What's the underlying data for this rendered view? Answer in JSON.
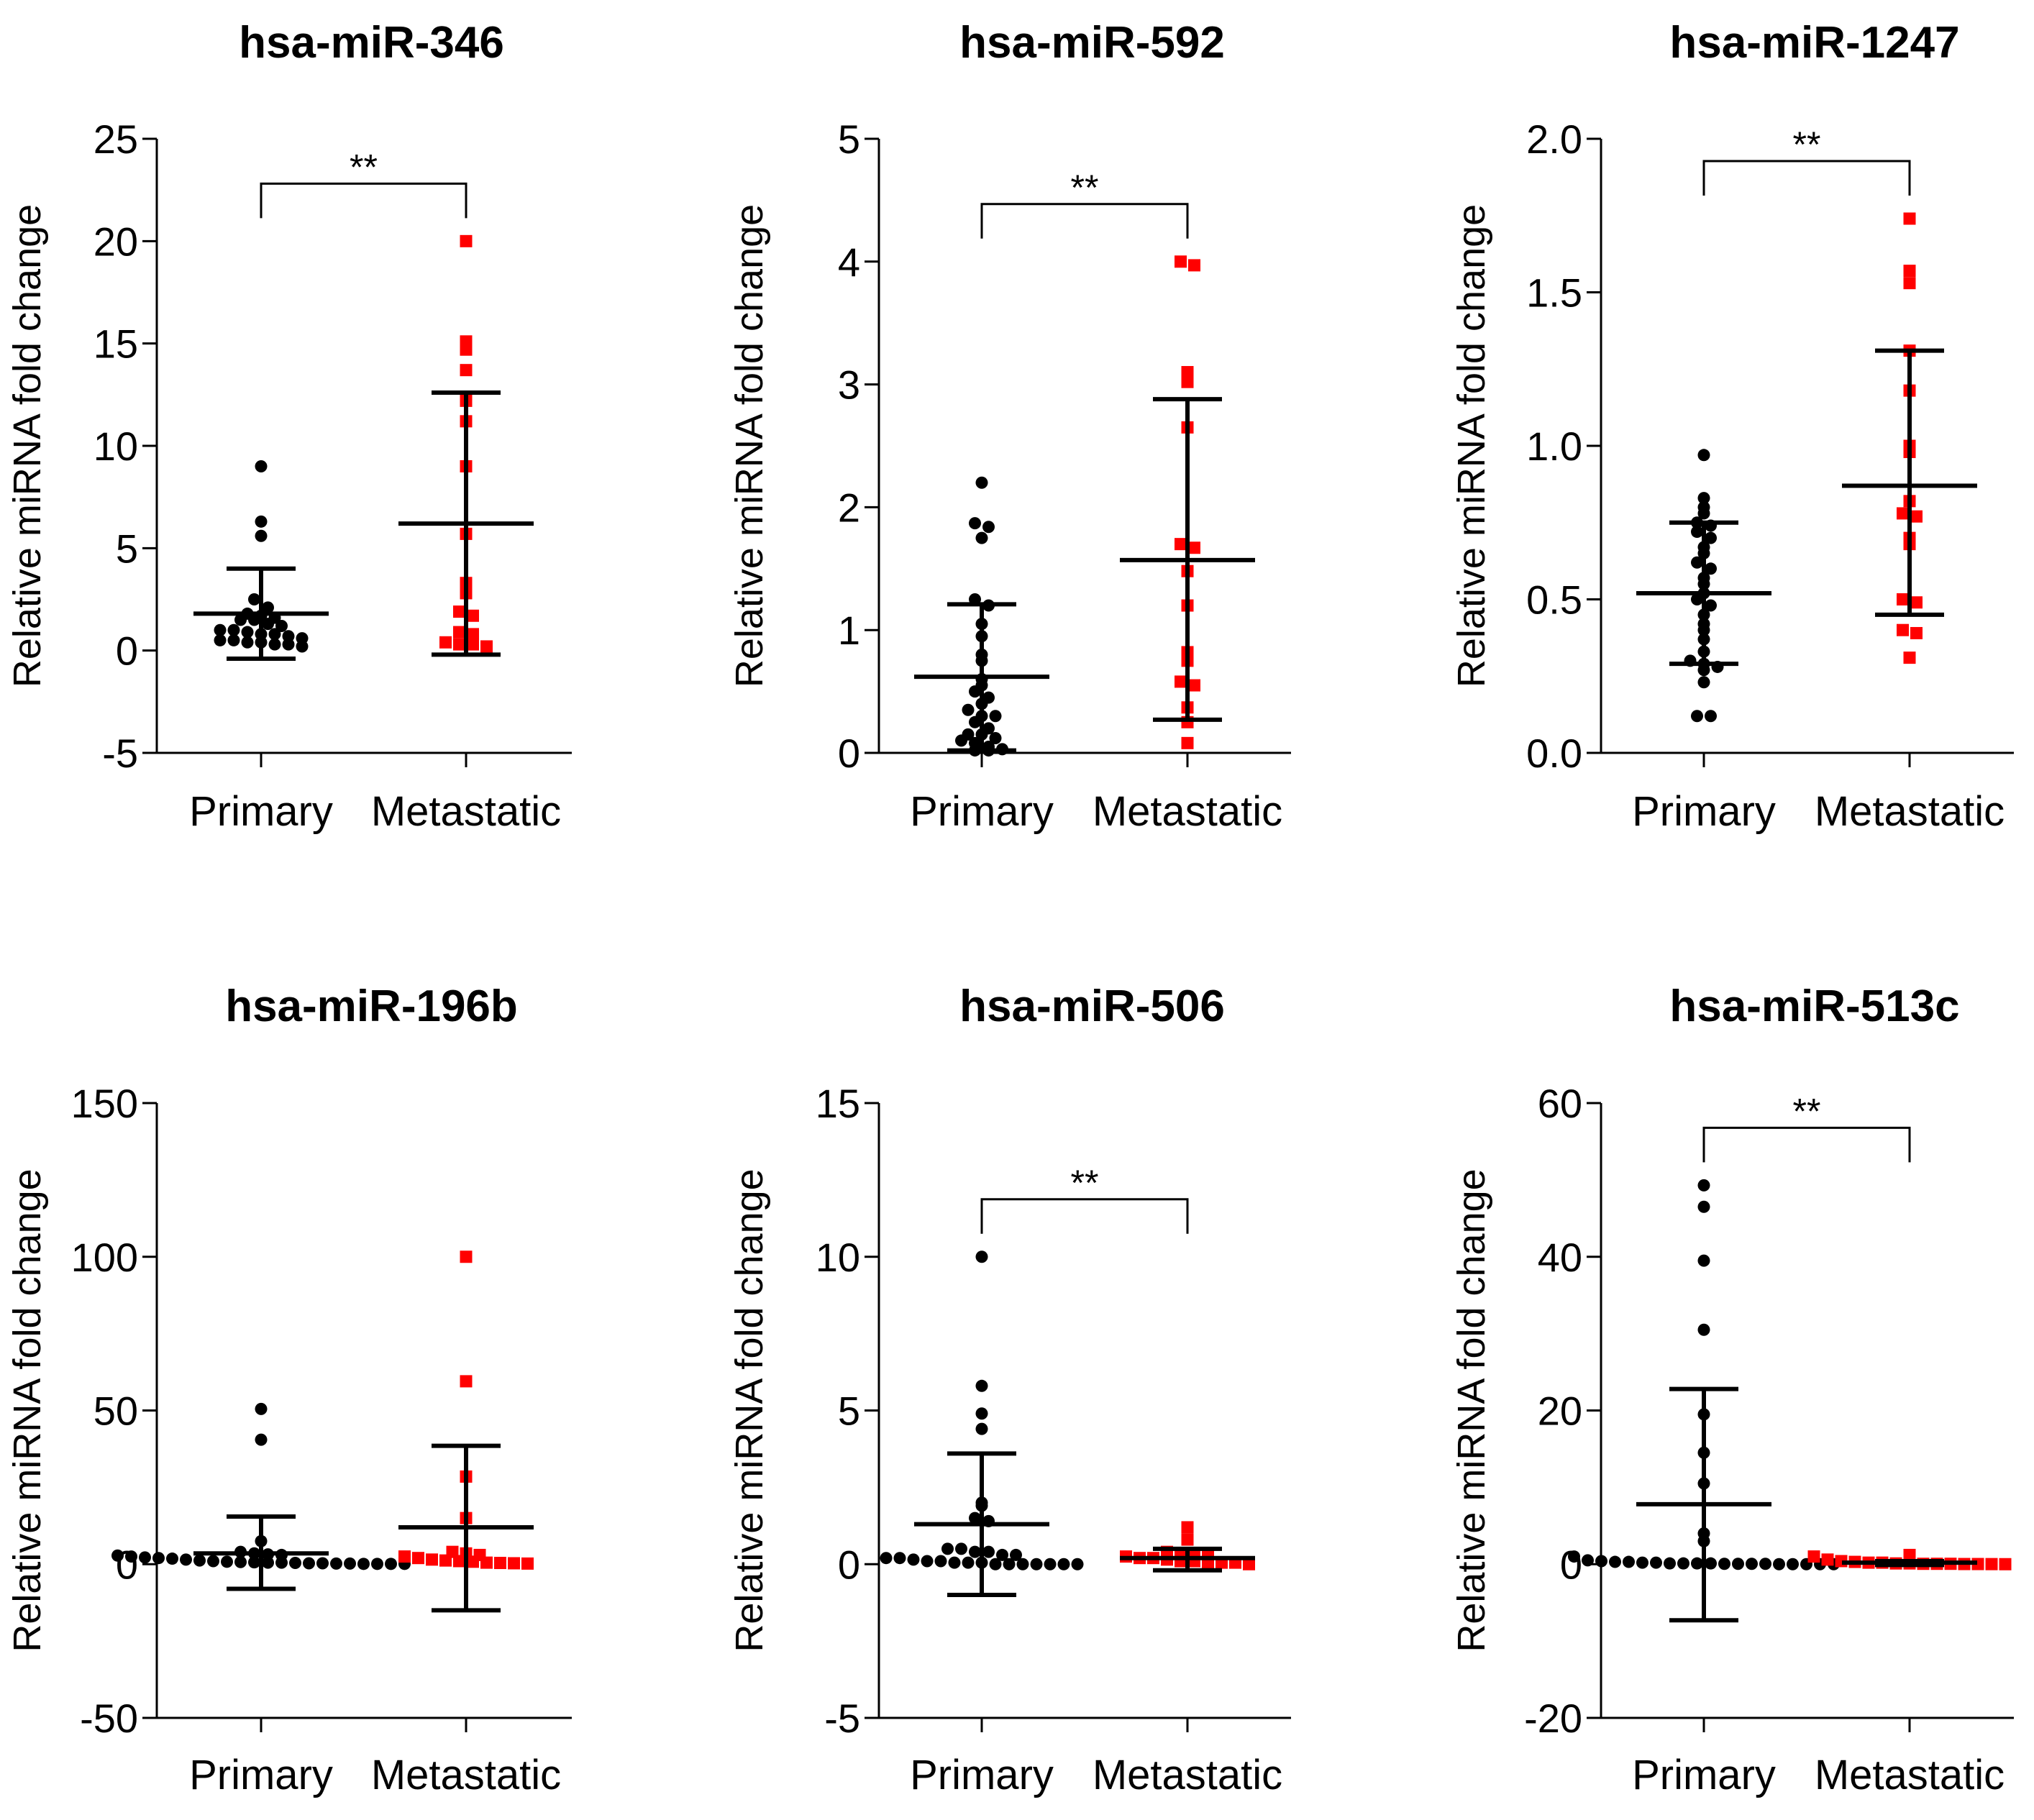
{
  "chart_data": [
    {
      "type": "scatter",
      "title": "hsa-miR-346",
      "ylabel": "Relative miRNA fold change",
      "ylim": [
        -5,
        25
      ],
      "yticks": [
        -5,
        0,
        5,
        10,
        15,
        20,
        25
      ],
      "categories": [
        "Primary",
        "Metastatic"
      ],
      "significance": "**",
      "series": [
        {
          "category": "Primary",
          "color": "#000000",
          "marker": "circle",
          "mean": 1.8,
          "sd_low": -0.4,
          "sd_high": 4.0,
          "values": [
            9.0,
            6.3,
            5.6,
            2.5,
            2.1,
            1.8,
            1.7,
            1.6,
            1.5,
            1.5,
            1.3,
            1.2,
            1.0,
            1.0,
            0.9,
            0.8,
            0.8,
            0.7,
            0.6,
            0.5,
            0.5,
            0.4,
            0.4,
            0.3,
            0.3,
            0.2
          ]
        },
        {
          "category": "Metastatic",
          "color": "#ff0000",
          "marker": "square",
          "mean": 6.2,
          "sd_low": -0.2,
          "sd_high": 12.6,
          "values": [
            20.0,
            15.1,
            14.7,
            13.7,
            12.2,
            11.2,
            9.0,
            5.7,
            3.3,
            2.8,
            1.9,
            1.7,
            0.9,
            0.8,
            0.4,
            0.3,
            0.3,
            0.2
          ]
        }
      ]
    },
    {
      "type": "scatter",
      "title": "hsa-miR-592",
      "ylabel": "Relative miRNA fold change",
      "ylim": [
        0,
        5
      ],
      "yticks": [
        0,
        1,
        2,
        3,
        4,
        5
      ],
      "categories": [
        "Primary",
        "Metastatic"
      ],
      "significance": "**",
      "series": [
        {
          "category": "Primary",
          "color": "#000000",
          "marker": "circle",
          "mean": 0.62,
          "sd_low": 0.02,
          "sd_high": 1.21,
          "values": [
            2.2,
            1.87,
            1.84,
            1.75,
            1.25,
            1.2,
            1.05,
            0.95,
            0.8,
            0.75,
            0.6,
            0.55,
            0.5,
            0.45,
            0.4,
            0.35,
            0.3,
            0.3,
            0.25,
            0.2,
            0.15,
            0.15,
            0.12,
            0.1,
            0.08,
            0.05,
            0.03,
            0.02,
            0.02
          ]
        },
        {
          "category": "Metastatic",
          "color": "#ff0000",
          "marker": "square",
          "mean": 1.57,
          "sd_low": 0.27,
          "sd_high": 2.88,
          "values": [
            4.0,
            3.97,
            3.1,
            3.02,
            2.65,
            1.7,
            1.67,
            1.48,
            1.2,
            0.82,
            0.75,
            0.58,
            0.55,
            0.37,
            0.25,
            0.08
          ]
        }
      ]
    },
    {
      "type": "scatter",
      "title": "hsa-miR-1247",
      "ylabel": "Relative miRNA fold change",
      "ylim": [
        0.0,
        2.0
      ],
      "yticks": [
        0.0,
        0.5,
        1.0,
        1.5,
        2.0
      ],
      "tick_format": "1",
      "categories": [
        "Primary",
        "Metastatic"
      ],
      "significance": "**",
      "series": [
        {
          "category": "Primary",
          "color": "#000000",
          "marker": "circle",
          "mean": 0.52,
          "sd_low": 0.29,
          "sd_high": 0.75,
          "values": [
            0.97,
            0.83,
            0.8,
            0.78,
            0.75,
            0.74,
            0.72,
            0.7,
            0.67,
            0.65,
            0.62,
            0.6,
            0.57,
            0.55,
            0.52,
            0.5,
            0.48,
            0.45,
            0.42,
            0.4,
            0.37,
            0.33,
            0.3,
            0.29,
            0.28,
            0.27,
            0.23,
            0.12,
            0.12
          ]
        },
        {
          "category": "Metastatic",
          "color": "#ff0000",
          "marker": "square",
          "mean": 0.87,
          "sd_low": 0.45,
          "sd_high": 1.31,
          "values": [
            1.74,
            1.57,
            1.53,
            1.31,
            1.18,
            1.0,
            0.98,
            0.82,
            0.78,
            0.77,
            0.7,
            0.68,
            0.5,
            0.49,
            0.4,
            0.39,
            0.31
          ]
        }
      ]
    },
    {
      "type": "scatter",
      "title": "hsa-miR-196b",
      "ylabel": "Relative miRNA fold change",
      "ylim": [
        -50,
        150
      ],
      "yticks": [
        -50,
        0,
        50,
        100,
        150
      ],
      "categories": [
        "Primary",
        "Metastatic"
      ],
      "significance": "",
      "series": [
        {
          "category": "Primary",
          "color": "#000000",
          "marker": "circle",
          "mean": 3.5,
          "sd_low": -8,
          "sd_high": 15.5,
          "values": [
            50.5,
            40.5,
            7.5,
            4,
            3.5,
            3.2,
            3,
            2.8,
            2.5,
            2.2,
            2,
            1.8,
            1.5,
            1.2,
            1,
            0.8,
            0.7,
            0.6,
            0.5,
            0.5,
            0.4,
            0.3,
            0.3,
            0.2,
            0.2,
            0.1,
            0.1,
            0.1,
            0.1
          ]
        },
        {
          "category": "Metastatic",
          "color": "#ff0000",
          "marker": "square",
          "mean": 12,
          "sd_low": -15,
          "sd_high": 38.5,
          "values": [
            100,
            59.5,
            28.5,
            15,
            4,
            3.5,
            3,
            2.5,
            2,
            1.5,
            1.2,
            1,
            0.8,
            0.5,
            0.4,
            0.3,
            0.2
          ]
        }
      ]
    },
    {
      "type": "scatter",
      "title": "hsa-miR-506",
      "ylabel": "Relative miRNA fold change",
      "ylim": [
        -5,
        15
      ],
      "yticks": [
        -5,
        0,
        5,
        10,
        15
      ],
      "categories": [
        "Primary",
        "Metastatic"
      ],
      "significance": "**",
      "series": [
        {
          "category": "Primary",
          "color": "#000000",
          "marker": "circle",
          "mean": 1.3,
          "sd_low": -1.0,
          "sd_high": 3.6,
          "values": [
            10.0,
            5.8,
            4.9,
            4.4,
            2.0,
            1.9,
            1.5,
            1.4,
            0.5,
            0.5,
            0.4,
            0.4,
            0.3,
            0.3,
            0.2,
            0.2,
            0.15,
            0.1,
            0.1,
            0.05,
            0.05,
            0.05,
            0.0,
            0.0,
            0.0,
            0.0,
            0.0,
            0.0,
            0.0
          ]
        },
        {
          "category": "Metastatic",
          "color": "#ff0000",
          "marker": "square",
          "mean": 0.2,
          "sd_low": -0.2,
          "sd_high": 0.5,
          "values": [
            1.2,
            0.8,
            0.4,
            0.35,
            0.3,
            0.3,
            0.25,
            0.2,
            0.2,
            0.15,
            0.1,
            0.1,
            0.05,
            0.05,
            0.05,
            0.0
          ]
        }
      ]
    },
    {
      "type": "scatter",
      "title": "hsa-miR-513c",
      "ylabel": "Relative miRNA fold change",
      "ylim": [
        -20,
        60
      ],
      "yticks": [
        -20,
        0,
        20,
        40,
        60
      ],
      "categories": [
        "Primary",
        "Metastatic"
      ],
      "significance": "**",
      "series": [
        {
          "category": "Primary",
          "color": "#000000",
          "marker": "circle",
          "mean": 7.8,
          "sd_low": -7.3,
          "sd_high": 22.8,
          "values": [
            49.3,
            46.5,
            39.5,
            30.5,
            19.5,
            14.5,
            10.5,
            4,
            3,
            1,
            0.5,
            0.4,
            0.3,
            0.3,
            0.2,
            0.2,
            0.1,
            0.1,
            0.1,
            0.1,
            0.05,
            0.05,
            0.05,
            0.05,
            0,
            0,
            0,
            0,
            0
          ]
        },
        {
          "category": "Metastatic",
          "color": "#ff0000",
          "marker": "square",
          "mean": 0.2,
          "sd_low": -0.1,
          "sd_high": 0.4,
          "values": [
            1.2,
            1.0,
            0.6,
            0.4,
            0.3,
            0.2,
            0.2,
            0.1,
            0.1,
            0.05,
            0.05,
            0.05,
            0.02,
            0.02,
            0.01,
            0.0
          ]
        }
      ]
    }
  ]
}
